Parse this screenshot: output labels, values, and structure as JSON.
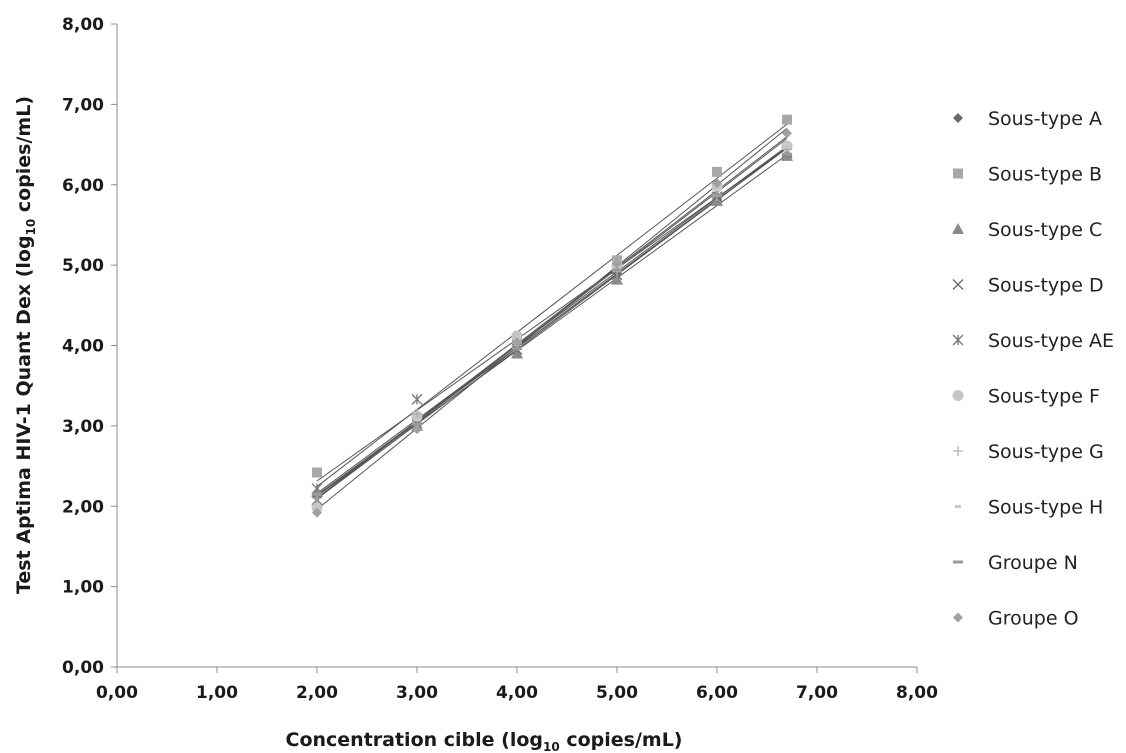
{
  "chart_data": {
    "type": "scatter",
    "xlabel": {
      "prefix": "Concentration cible (log",
      "sub": "10",
      "suffix": " copies/mL)"
    },
    "ylabel": {
      "prefix": "Test Aptima HIV-1 Quant Dex (log",
      "sub": "10",
      "suffix": " copies/mL)"
    },
    "xlim": [
      0,
      8
    ],
    "ylim": [
      0,
      8
    ],
    "x_ticks": [
      "0,00",
      "1,00",
      "2,00",
      "3,00",
      "4,00",
      "5,00",
      "6,00",
      "7,00",
      "8,00"
    ],
    "y_ticks": [
      "0,00",
      "1,00",
      "2,00",
      "3,00",
      "4,00",
      "5,00",
      "6,00",
      "7,00",
      "8,00"
    ],
    "x_tick_values": [
      0,
      1,
      2,
      3,
      4,
      5,
      6,
      7,
      8
    ],
    "y_tick_values": [
      0,
      1,
      2,
      3,
      4,
      5,
      6,
      7,
      8
    ],
    "grid": false,
    "legend_position": "right",
    "trendlines": true,
    "x": [
      2.0,
      3.0,
      4.0,
      5.0,
      6.0,
      6.7
    ],
    "series": [
      {
        "name": "Sous-type A",
        "marker": "diamond",
        "color": "#6b6b6b",
        "values": [
          2.12,
          3.05,
          3.98,
          4.9,
          5.82,
          6.45
        ]
      },
      {
        "name": "Sous-type B",
        "marker": "square",
        "color": "#a8a8a8",
        "values": [
          2.42,
          3.1,
          4.02,
          5.06,
          6.16,
          6.81
        ]
      },
      {
        "name": "Sous-type C",
        "marker": "triangle",
        "color": "#8a8a8a",
        "values": [
          2.18,
          3.0,
          3.9,
          4.82,
          5.8,
          6.36
        ]
      },
      {
        "name": "Sous-type D",
        "marker": "x",
        "color": "#6e6e6e",
        "values": [
          2.08,
          3.03,
          3.95,
          4.88,
          5.85,
          6.42
        ]
      },
      {
        "name": "Sous-type AE",
        "marker": "asterisk",
        "color": "#7a7a7a",
        "values": [
          2.22,
          3.33,
          4.05,
          4.95,
          5.9,
          6.4
        ]
      },
      {
        "name": "Sous-type F",
        "marker": "circle",
        "color": "#c4c4c4",
        "values": [
          1.98,
          3.12,
          4.12,
          5.0,
          5.98,
          6.48
        ]
      },
      {
        "name": "Sous-type G",
        "marker": "plus",
        "color": "#b0b0b0",
        "values": [
          2.1,
          3.15,
          4.0,
          4.92,
          5.86,
          6.44
        ]
      },
      {
        "name": "Sous-type H",
        "marker": "shortdash",
        "color": "#c8c8c8",
        "values": [
          2.02,
          3.08,
          4.06,
          4.98,
          5.94,
          6.5
        ]
      },
      {
        "name": "Groupe N",
        "marker": "dash",
        "color": "#9a9a9a",
        "values": [
          2.15,
          3.02,
          3.96,
          4.94,
          5.88,
          6.38
        ]
      },
      {
        "name": "Groupe O",
        "marker": "diamond",
        "color": "#a0a0a0",
        "values": [
          1.92,
          2.96,
          4.04,
          5.02,
          6.02,
          6.64
        ]
      }
    ]
  }
}
